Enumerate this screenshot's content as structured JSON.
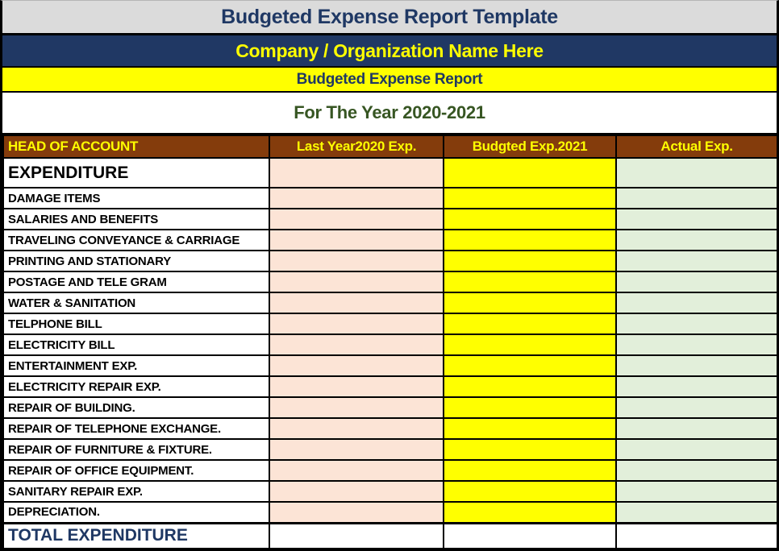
{
  "header": {
    "template_title": "Budgeted Expense Report Template",
    "company_name": "Company / Organization Name Here",
    "report_title": "Budgeted Expense Report",
    "period": "For The Year 2020-2021"
  },
  "table": {
    "columns": [
      "HEAD OF ACCOUNT",
      "Last Year2020 Exp.",
      "Budgted Exp.2021",
      "Actual Exp."
    ],
    "section_header": {
      "label": "EXPENDITURE",
      "last_year": "",
      "budgeted": "",
      "actual": ""
    },
    "rows": [
      {
        "label": "DAMAGE ITEMS",
        "last_year": "",
        "budgeted": "",
        "actual": ""
      },
      {
        "label": "SALARIES AND BENEFITS",
        "last_year": "",
        "budgeted": "",
        "actual": ""
      },
      {
        "label": "TRAVELING CONVEYANCE & CARRIAGE",
        "last_year": "",
        "budgeted": "",
        "actual": ""
      },
      {
        "label": "PRINTING AND STATIONARY",
        "last_year": "",
        "budgeted": "",
        "actual": ""
      },
      {
        "label": "POSTAGE AND TELE GRAM",
        "last_year": "",
        "budgeted": "",
        "actual": ""
      },
      {
        "label": "WATER & SANITATION",
        "last_year": "",
        "budgeted": "",
        "actual": ""
      },
      {
        "label": "TELPHONE BILL",
        "last_year": "",
        "budgeted": "",
        "actual": ""
      },
      {
        "label": "ELECTRICITY BILL",
        "last_year": "",
        "budgeted": "",
        "actual": ""
      },
      {
        "label": "ENTERTAINMENT EXP.",
        "last_year": "",
        "budgeted": "",
        "actual": ""
      },
      {
        "label": "ELECTRICITY REPAIR EXP.",
        "last_year": "",
        "budgeted": "",
        "actual": ""
      },
      {
        "label": "REPAIR OF BUILDING.",
        "last_year": "",
        "budgeted": "",
        "actual": ""
      },
      {
        "label": "REPAIR OF TELEPHONE EXCHANGE.",
        "last_year": "",
        "budgeted": "",
        "actual": ""
      },
      {
        "label": "REPAIR OF FURNITURE & FIXTURE.",
        "last_year": "",
        "budgeted": "",
        "actual": ""
      },
      {
        "label": "REPAIR OF OFFICE EQUIPMENT.",
        "last_year": "",
        "budgeted": "",
        "actual": ""
      },
      {
        "label": "SANITARY REPAIR EXP.",
        "last_year": "",
        "budgeted": "",
        "actual": ""
      },
      {
        "label": "DEPRECIATION.",
        "last_year": "",
        "budgeted": "",
        "actual": ""
      }
    ],
    "total_row": {
      "label": "TOTAL EXPENDITURE",
      "last_year": "",
      "budgeted": "",
      "actual": ""
    }
  },
  "colors": {
    "title_bar_bg": "#dbdbdb",
    "navy": "#203864",
    "title_text": "#1f3864",
    "yellow": "#ffff00",
    "period_text_green": "#375623",
    "header_brown": "#843c0c",
    "last_year_col_bg": "#fce4d6",
    "budgeted_col_bg": "#ffff00",
    "actual_col_bg": "#e2efda"
  }
}
